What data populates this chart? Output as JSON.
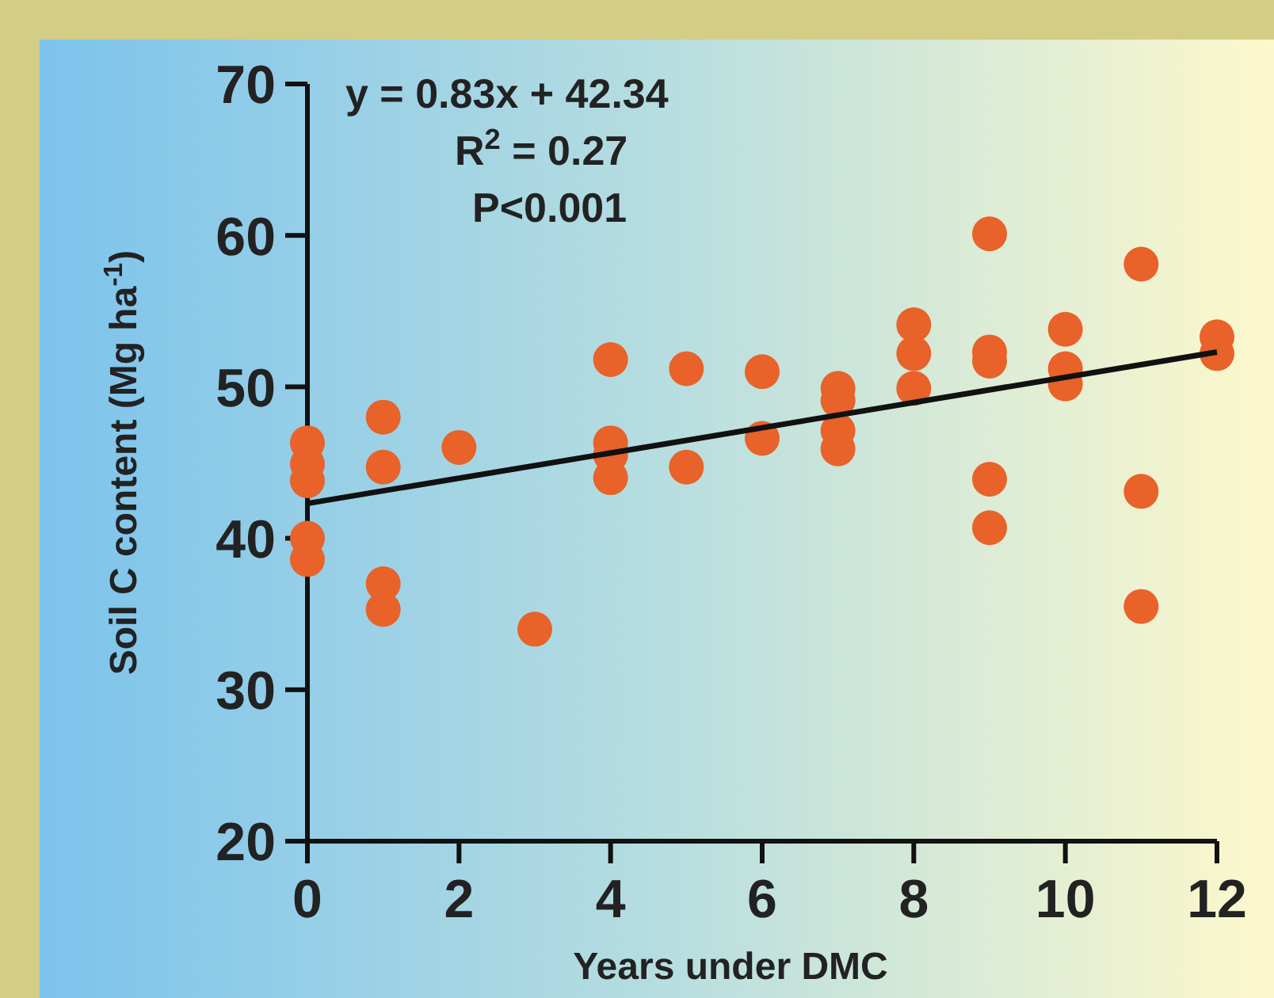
{
  "chart_data": {
    "type": "scatter",
    "xlabel": "Years under DMC",
    "ylabel": "Soil C content (Mg ha$^{-1}$)",
    "xlim": [
      0,
      12
    ],
    "xticks": [
      0,
      2,
      4,
      6,
      8,
      10,
      12
    ],
    "ylim": [
      20,
      70
    ],
    "yticks": [
      20,
      30,
      40,
      50,
      60,
      70
    ],
    "grid": false,
    "annotations": [
      "y = 0.83x + 42.34",
      "R$^{2}$ = 0.27",
      "P<0.001"
    ],
    "series": [
      {
        "type": "scatter",
        "marker": "circle",
        "color": "#e8622a",
        "x": [
          0,
          0,
          0,
          0,
          0,
          1,
          1,
          1,
          1,
          2,
          3,
          4,
          4,
          4,
          4,
          5,
          5,
          6,
          6,
          7,
          7,
          7,
          7,
          8,
          8,
          8,
          9,
          9,
          9,
          9,
          9,
          10,
          10,
          10,
          11,
          11,
          11,
          12,
          12
        ],
        "values": [
          46.3,
          44.9,
          43.8,
          40.0,
          38.6,
          48.0,
          44.7,
          37.0,
          35.3,
          46.0,
          34.0,
          51.8,
          46.3,
          45.5,
          44.0,
          51.2,
          44.7,
          51.0,
          46.6,
          49.9,
          49.1,
          47.1,
          45.9,
          54.1,
          52.2,
          49.9,
          60.1,
          52.3,
          51.7,
          43.9,
          40.7,
          53.8,
          51.2,
          50.2,
          58.1,
          43.1,
          35.5,
          53.3,
          52.2
        ]
      },
      {
        "type": "line",
        "color": "#111111",
        "x": [
          0,
          12
        ],
        "values": [
          42.3,
          52.3
        ],
        "line_style": "solid"
      }
    ]
  }
}
